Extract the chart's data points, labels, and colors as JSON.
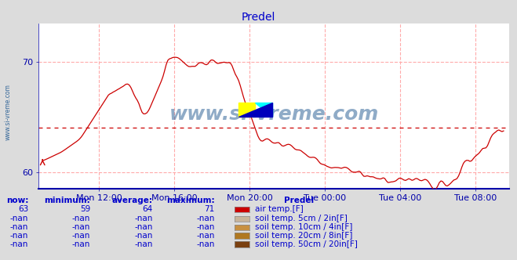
{
  "title": "Predel",
  "title_color": "#0000cc",
  "bg_color": "#dcdcdc",
  "plot_bg_color": "#ffffff",
  "grid_color": "#ffaaaa",
  "axis_color": "#0000aa",
  "line_color": "#cc0000",
  "watermark": "www.si-vreme.com",
  "watermark_color": "#336699",
  "ylim": [
    58.5,
    73.5
  ],
  "yticks": [
    60,
    70
  ],
  "avg_line_y": 64,
  "avg_line_color": "#cc0000",
  "xlabels": [
    "Mon 12:00",
    "Mon 16:00",
    "Mon 20:00",
    "Tue 00:00",
    "Tue 04:00",
    "Tue 08:00"
  ],
  "legend_title": "Predel",
  "legend_items": [
    {
      "label": "air temp.[F]",
      "color": "#cc0000"
    },
    {
      "label": "soil temp. 5cm / 2in[F]",
      "color": "#c8b49a"
    },
    {
      "label": "soil temp. 10cm / 4in[F]",
      "color": "#c89040"
    },
    {
      "label": "soil temp. 20cm / 8in[F]",
      "color": "#b07820"
    },
    {
      "label": "soil temp. 50cm / 20in[F]",
      "color": "#7a4010"
    }
  ],
  "table_headers": [
    "now:",
    "minimum:",
    "average:",
    "maximum:"
  ],
  "table_rows": [
    [
      "63",
      "59",
      "64",
      "71"
    ],
    [
      "-nan",
      "-nan",
      "-nan",
      "-nan"
    ],
    [
      "-nan",
      "-nan",
      "-nan",
      "-nan"
    ],
    [
      "-nan",
      "-nan",
      "-nan",
      "-nan"
    ],
    [
      "-nan",
      "-nan",
      "-nan",
      "-nan"
    ]
  ],
  "table_color": "#0000cc",
  "xlabel_color": "#0000aa",
  "tick_fontsize": 8,
  "title_fontsize": 10
}
